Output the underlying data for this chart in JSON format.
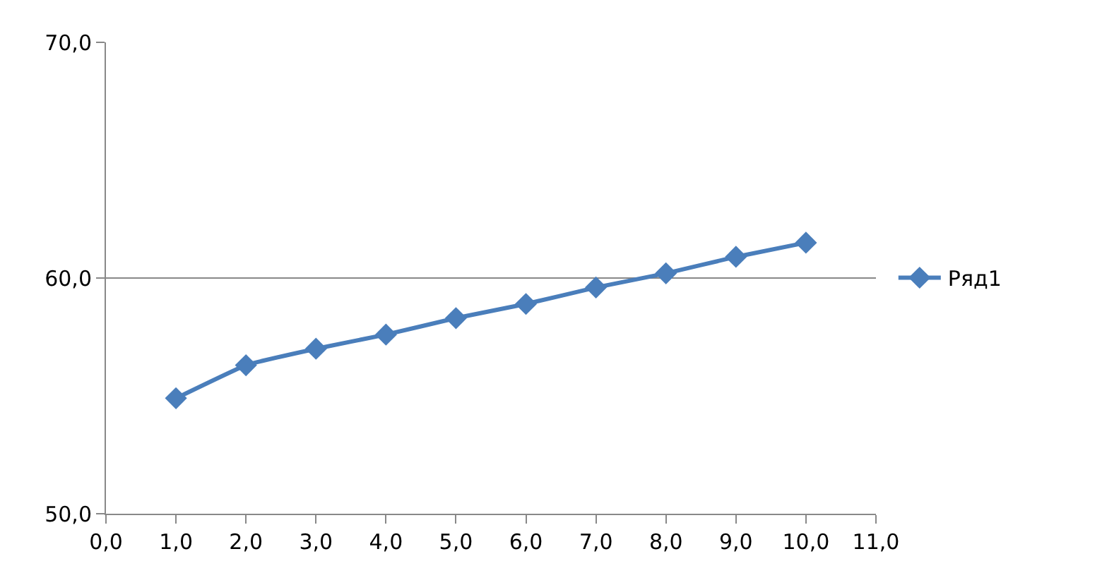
{
  "chart_data": {
    "type": "line",
    "x": [
      1,
      2,
      3,
      4,
      5,
      6,
      7,
      8,
      9,
      10
    ],
    "series": [
      {
        "name": "Ряд1",
        "color": "#4a7ebb",
        "values": [
          54.9,
          56.3,
          57.0,
          57.6,
          58.3,
          58.9,
          59.6,
          60.2,
          60.9,
          61.5
        ]
      }
    ],
    "xlim": [
      0,
      11
    ],
    "xticks": [
      {
        "value": 0,
        "label": "0,0"
      },
      {
        "value": 1,
        "label": "1,0"
      },
      {
        "value": 2,
        "label": "2,0"
      },
      {
        "value": 3,
        "label": "3,0"
      },
      {
        "value": 4,
        "label": "4,0"
      },
      {
        "value": 5,
        "label": "5,0"
      },
      {
        "value": 6,
        "label": "6,0"
      },
      {
        "value": 7,
        "label": "7,0"
      },
      {
        "value": 8,
        "label": "8,0"
      },
      {
        "value": 9,
        "label": "9,0"
      },
      {
        "value": 10,
        "label": "10,0"
      },
      {
        "value": 11,
        "label": "11,0"
      }
    ],
    "ylim": [
      50,
      70
    ],
    "yticks": [
      {
        "value": 50,
        "label": "50,0"
      },
      {
        "value": 60,
        "label": "60,0"
      },
      {
        "value": 70,
        "label": "70,0"
      }
    ],
    "grid": "y",
    "legend": "right",
    "marker": "diamond",
    "line_style": "solid"
  }
}
